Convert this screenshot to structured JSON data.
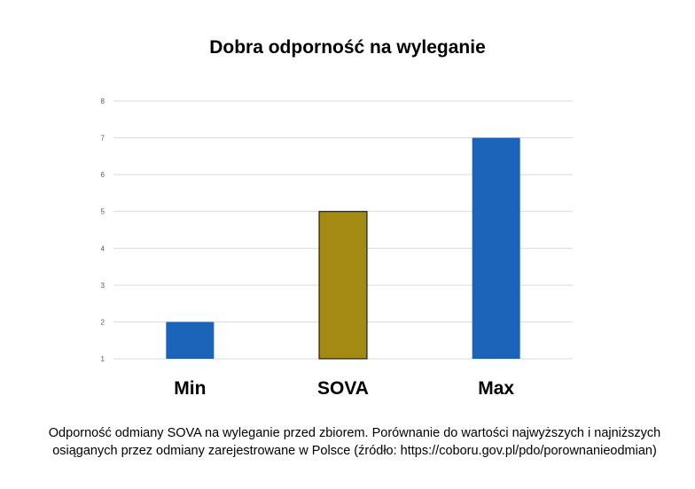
{
  "chart_data": {
    "type": "bar",
    "title": "Dobra odporność na wyleganie",
    "categories": [
      "Min",
      "SOVA",
      "Max"
    ],
    "values": [
      2,
      5,
      7
    ],
    "bar_colors": [
      "#1a63b8",
      "#a38a12",
      "#1a63b8"
    ],
    "ylim": [
      1,
      8
    ],
    "yticks": [
      "1",
      "2",
      "3",
      "4",
      "5",
      "6",
      "7",
      "8"
    ],
    "grid": true,
    "xlabel": "",
    "ylabel": ""
  },
  "caption": {
    "line1": "Odporność odmiany SOVA na wyleganie przed zbiorem. Porównanie do wartości najwyższych i najniższych",
    "line2": "osiąganych przez odmiany zarejestrowane w Polsce (źródło: https://coboru.gov.pl/pdo/porownanieodmian)"
  }
}
